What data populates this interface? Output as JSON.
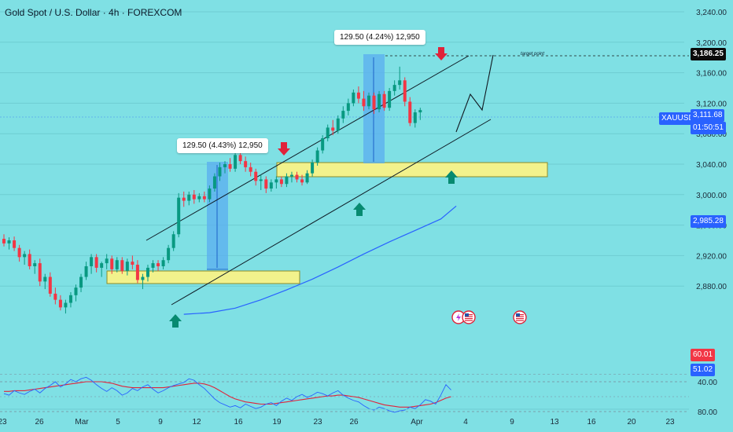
{
  "chart_data": {
    "type": "candlestick",
    "title": "Gold Spot / U.S. Dollar · 4h · FOREXCOM",
    "symbol": "XAUUSD",
    "ylim": [
      2835,
      3250
    ],
    "y_ticks": [
      "3,240.00",
      "3,200.00",
      "3,160.00",
      "3,120.00",
      "3,080.00",
      "3,040.00",
      "3,000.00",
      "2,960.00",
      "2,920.00",
      "2,880.00"
    ],
    "x_ticks": [
      "23",
      "26",
      "Mar",
      "5",
      "9",
      "12",
      "16",
      "19",
      "23",
      "26",
      "Apr",
      "4",
      "9",
      "13",
      "16",
      "20",
      "23"
    ],
    "price_tags": {
      "target": "3,186.25",
      "last": "3,111.68",
      "countdown": "01:50:51",
      "ma": "2,985.28"
    },
    "rsi": {
      "ticks": [
        "80.00",
        "40.00"
      ],
      "tags": {
        "ma": "60.01",
        "value": "51.02"
      },
      "values": [
        56,
        58,
        52,
        55,
        57,
        53,
        50,
        55,
        49,
        45,
        40,
        47,
        43,
        37,
        40,
        36,
        34,
        38,
        44,
        49,
        53,
        48,
        52,
        58,
        55,
        49,
        52,
        47,
        44,
        50,
        55,
        52,
        48,
        45,
        43,
        41,
        36,
        38,
        44,
        49,
        56,
        63,
        68,
        71,
        74,
        72,
        75,
        70,
        73,
        76,
        74,
        70,
        68,
        72,
        66,
        62,
        65,
        60,
        57,
        61,
        58,
        54,
        56,
        59,
        55,
        52,
        58,
        62,
        65,
        67,
        72,
        76,
        78,
        74,
        76,
        79,
        81,
        79,
        78,
        74,
        76,
        71,
        64,
        66,
        70,
        58,
        44,
        51
      ],
      "ma_values": [
        53,
        53,
        52,
        52,
        52,
        51,
        50,
        49,
        48,
        47,
        46,
        45,
        44,
        43,
        42,
        41,
        40,
        40,
        40,
        40,
        41,
        42,
        44,
        46,
        47,
        48,
        48,
        48,
        48,
        48,
        48,
        48,
        47,
        46,
        45,
        44,
        43,
        42,
        42,
        43,
        45,
        48,
        52,
        56,
        60,
        63,
        65,
        67,
        68,
        69,
        70,
        70,
        70,
        69,
        68,
        67,
        66,
        65,
        64,
        63,
        62,
        61,
        60,
        59,
        59,
        58,
        58,
        59,
        60,
        61,
        63,
        65,
        67,
        69,
        71,
        72,
        73,
        74,
        74,
        74,
        73,
        72,
        71,
        70,
        68,
        65,
        62,
        60
      ]
    },
    "ma_line": [
      [
        35,
        2843
      ],
      [
        40,
        2845
      ],
      [
        45,
        2851
      ],
      [
        50,
        2862
      ],
      [
        55,
        2875
      ],
      [
        60,
        2889
      ],
      [
        65,
        2905
      ],
      [
        70,
        2922
      ],
      [
        75,
        2938
      ],
      [
        80,
        2953
      ],
      [
        85,
        2968
      ],
      [
        88,
        2985
      ]
    ],
    "series": [
      {
        "values": [
          [
            2942,
            2948,
            2932,
            2936
          ],
          [
            2936,
            2944,
            2928,
            2940
          ],
          [
            2940,
            2945,
            2926,
            2930
          ],
          [
            2930,
            2934,
            2912,
            2918
          ],
          [
            2918,
            2926,
            2908,
            2922
          ],
          [
            2922,
            2928,
            2902,
            2906
          ],
          [
            2906,
            2914,
            2896,
            2910
          ],
          [
            2910,
            2916,
            2880,
            2886
          ],
          [
            2886,
            2896,
            2876,
            2892
          ],
          [
            2892,
            2898,
            2866,
            2870
          ],
          [
            2870,
            2878,
            2856,
            2862
          ],
          [
            2862,
            2868,
            2848,
            2852
          ],
          [
            2852,
            2862,
            2844,
            2858
          ],
          [
            2858,
            2872,
            2852,
            2868
          ],
          [
            2868,
            2882,
            2860,
            2878
          ],
          [
            2878,
            2896,
            2872,
            2892
          ],
          [
            2892,
            2912,
            2888,
            2906
          ],
          [
            2906,
            2922,
            2896,
            2918
          ],
          [
            2918,
            2922,
            2898,
            2904
          ],
          [
            2904,
            2912,
            2892,
            2910
          ],
          [
            2910,
            2922,
            2902,
            2916
          ],
          [
            2916,
            2920,
            2896,
            2902
          ],
          [
            2902,
            2918,
            2898,
            2914
          ],
          [
            2914,
            2918,
            2896,
            2900
          ],
          [
            2900,
            2916,
            2894,
            2912
          ],
          [
            2912,
            2920,
            2902,
            2908
          ],
          [
            2908,
            2914,
            2884,
            2888
          ],
          [
            2888,
            2896,
            2876,
            2892
          ],
          [
            2892,
            2908,
            2886,
            2904
          ],
          [
            2904,
            2914,
            2898,
            2910
          ],
          [
            2910,
            2914,
            2900,
            2906
          ],
          [
            2906,
            2918,
            2902,
            2914
          ],
          [
            2914,
            2934,
            2910,
            2930
          ],
          [
            2930,
            2952,
            2926,
            2948
          ],
          [
            2948,
            3002,
            2944,
            2996
          ],
          [
            2996,
            3004,
            2984,
            2992
          ],
          [
            2992,
            3004,
            2986,
            3000
          ],
          [
            3000,
            3006,
            2988,
            2994
          ],
          [
            2994,
            3002,
            2990,
            2998
          ],
          [
            2998,
            3004,
            2990,
            2994
          ],
          [
            2994,
            3012,
            2990,
            3008
          ],
          [
            3008,
            3028,
            3004,
            3024
          ],
          [
            3024,
            3042,
            3018,
            3036
          ],
          [
            3036,
            3044,
            3028,
            3040
          ],
          [
            3040,
            3048,
            3030,
            3034
          ],
          [
            3034,
            3058,
            3030,
            3052
          ],
          [
            3052,
            3056,
            3040,
            3044
          ],
          [
            3044,
            3050,
            3030,
            3036
          ],
          [
            3036,
            3042,
            3024,
            3030
          ],
          [
            3030,
            3034,
            3012,
            3018
          ],
          [
            3018,
            3026,
            3006,
            3020
          ],
          [
            3020,
            3024,
            3002,
            3008
          ],
          [
            3008,
            3020,
            3004,
            3016
          ],
          [
            3016,
            3024,
            3008,
            3020
          ],
          [
            3020,
            3024,
            3010,
            3014
          ],
          [
            3014,
            3028,
            3010,
            3024
          ],
          [
            3024,
            3030,
            3016,
            3026
          ],
          [
            3026,
            3030,
            3016,
            3020
          ],
          [
            3020,
            3026,
            3012,
            3016
          ],
          [
            3016,
            3032,
            3014,
            3028
          ],
          [
            3028,
            3046,
            3024,
            3042
          ],
          [
            3042,
            3062,
            3038,
            3058
          ],
          [
            3058,
            3078,
            3054,
            3074
          ],
          [
            3074,
            3092,
            3070,
            3088
          ],
          [
            3088,
            3098,
            3078,
            3084
          ],
          [
            3084,
            3104,
            3080,
            3100
          ],
          [
            3100,
            3116,
            3094,
            3110
          ],
          [
            3110,
            3126,
            3104,
            3120
          ],
          [
            3120,
            3138,
            3116,
            3134
          ],
          [
            3134,
            3142,
            3120,
            3126
          ],
          [
            3126,
            3136,
            3110,
            3116
          ],
          [
            3116,
            3134,
            3112,
            3130
          ],
          [
            3130,
            3134,
            3106,
            3112
          ],
          [
            3112,
            3136,
            3108,
            3132
          ],
          [
            3132,
            3136,
            3110,
            3114
          ],
          [
            3114,
            3140,
            3110,
            3136
          ],
          [
            3136,
            3150,
            3130,
            3144
          ],
          [
            3144,
            3168,
            3138,
            3150
          ],
          [
            3150,
            3154,
            3116,
            3122
          ],
          [
            3122,
            3128,
            3090,
            3094
          ],
          [
            3094,
            3112,
            3088,
            3108
          ],
          [
            3108,
            3114,
            3098,
            3111
          ]
        ]
      }
    ],
    "annotations": {
      "target_label": "target point",
      "measure_labels": [
        "129.50 (4.43%) 12,950",
        "129.50 (4.24%) 12,950"
      ]
    }
  }
}
